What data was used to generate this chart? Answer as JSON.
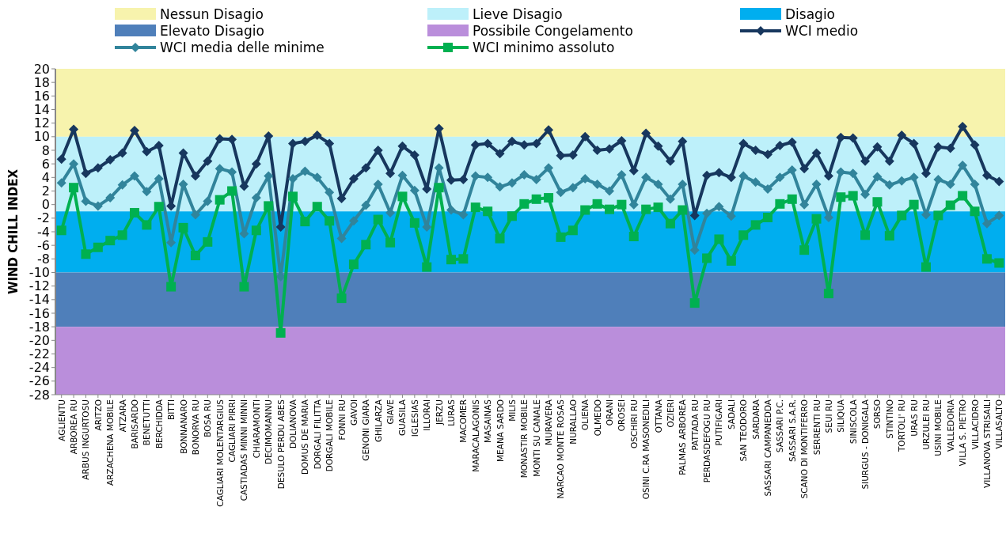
{
  "chart_data": {
    "type": "line",
    "ylabel": "WIND CHILL INDEX",
    "ylim": [
      -28,
      20
    ],
    "yticks": [
      -28,
      -26,
      -24,
      -22,
      -20,
      -18,
      -16,
      -14,
      -12,
      -10,
      -8,
      -6,
      -4,
      -2,
      0,
      2,
      4,
      6,
      8,
      10,
      12,
      14,
      16,
      18,
      20
    ],
    "legend": "top",
    "line_style": "solid",
    "categories": [
      "AGLIENTU",
      "ARBOREA RU",
      "ARBUS INGURTOSU",
      "ARITZO",
      "ARZACHENA MOBILE",
      "ATZARA",
      "BARISARDO",
      "BENETUTTI",
      "BERCHIDDA",
      "BITTI",
      "BONNANARO",
      "BONORVA RU",
      "BOSA RU",
      "CAGLIARI MOLENTARGIUS",
      "CAGLIARI PIRRI",
      "CASTIADAS MINNI MINNI",
      "CHIARAMONTI",
      "DECIMOMANNU",
      "DESULO PERDU ABES",
      "DOLIANOVA",
      "DOMUS DE MARIA",
      "DORGALI FILITTA",
      "DORGALI MOBILE",
      "FONNI RU",
      "GAVOI",
      "GENONI GIARA",
      "GHILARZA",
      "GIAVE",
      "GUASILA",
      "IGLESIAS",
      "ILLORAI",
      "JERZU",
      "LURAS",
      "MACOMER",
      "MARACALAGONIS",
      "MASAINAS",
      "MEANA SARDO",
      "MILIS",
      "MONASTIR MOBILE",
      "MONTI SU CANALE",
      "MURAVERA",
      "NARCAO MONTE ROSAS",
      "NURALLAO",
      "OLIENA",
      "OLMEDO",
      "ORANI",
      "OROSEI",
      "OSCHIRI RU",
      "OSINI C.RA MASONEDILI",
      "OTTANA",
      "OZIERI",
      "PALMAS ARBOREA",
      "PATTADA RU",
      "PERDASDEFOGU RU",
      "PUTIFIGARI",
      "SADALI",
      "SAN TEODORO",
      "SARDARA",
      "SASSARI CAMPANEDDA",
      "SASSARI P.C.",
      "SASSARI S.A.R.",
      "SCANO DI MONTIFERRO",
      "SERRENTI RU",
      "SEUI RU",
      "SILIQUA",
      "SINISCOLA",
      "SIURGUS - DONIGALA",
      "SORSO",
      "STINTINO",
      "TORTOLI' RU",
      "URAS RU",
      "URZULEI RU",
      "USINI MOBILE",
      "VALLEDORIA",
      "VILLA S. PIETRO",
      "VILLACIDRO",
      "VILLANOVA STRISAILI",
      "VILLASALTO"
    ],
    "bands": [
      {
        "axis": "y",
        "from": 10,
        "to": 20,
        "label": "Nessun Disagio",
        "color": "#f7f3ad"
      },
      {
        "axis": "y",
        "from": -1,
        "to": 10,
        "label": "Lieve Disagio",
        "color": "#bdf0fa"
      },
      {
        "axis": "y",
        "from": -10,
        "to": -1,
        "label": "Disagio",
        "color": "#00aeef"
      },
      {
        "axis": "y",
        "from": -18,
        "to": -10,
        "label": "Elevato Disagio",
        "color": "#4f7fba"
      },
      {
        "axis": "y",
        "from": -28,
        "to": -18,
        "label": "Possibile Congelamento",
        "color": "#ba8edb"
      }
    ],
    "series": [
      {
        "name": "WCI medio",
        "color": "#17375e",
        "marker": "diamond",
        "values": [
          6.7,
          11.1,
          4.6,
          5.4,
          6.6,
          7.6,
          10.9,
          7.8,
          8.7,
          -0.2,
          7.6,
          4.2,
          6.4,
          9.7,
          9.6,
          2.7,
          6.0,
          10.1,
          -3.3,
          9.0,
          9.3,
          10.2,
          9.0,
          0.9,
          3.8,
          5.4,
          8.0,
          4.6,
          8.6,
          7.3,
          2.3,
          11.2,
          3.6,
          3.7,
          8.8,
          9.0,
          7.5,
          9.3,
          8.8,
          9.0,
          11.0,
          7.2,
          7.3,
          10.0,
          8.0,
          8.2,
          9.4,
          5.0,
          10.5,
          8.6,
          6.4,
          9.3,
          -1.6,
          4.3,
          4.7,
          4.0,
          9.0,
          8.0,
          7.4,
          8.7,
          9.2,
          5.3,
          7.6,
          4.2,
          9.9,
          9.8,
          6.4,
          8.5,
          6.4,
          10.2,
          9.0,
          4.6,
          8.5,
          8.3,
          11.5,
          8.8,
          4.3,
          3.4
        ]
      },
      {
        "name": "WCI media delle minime",
        "color": "#31849b",
        "marker": "diamond",
        "values": [
          3.2,
          6.0,
          0.5,
          -0.2,
          1.0,
          2.9,
          4.2,
          1.9,
          3.8,
          -5.6,
          3.0,
          -1.5,
          0.5,
          5.3,
          4.8,
          -4.3,
          1.0,
          4.2,
          -10.6,
          3.8,
          4.9,
          4.0,
          1.8,
          -5.0,
          -2.4,
          -0.1,
          3.0,
          -1.2,
          4.3,
          2.1,
          -3.3,
          5.4,
          -0.8,
          -1.5,
          4.2,
          4.0,
          2.6,
          3.2,
          4.4,
          3.7,
          5.4,
          1.8,
          2.5,
          3.8,
          3.0,
          2.0,
          4.4,
          0.0,
          4.0,
          3.0,
          0.8,
          3.0,
          -6.7,
          -1.3,
          -0.3,
          -1.7,
          4.2,
          3.3,
          2.3,
          4.0,
          5.1,
          0.0,
          3.0,
          -1.9,
          4.8,
          4.6,
          1.5,
          4.1,
          2.9,
          3.5,
          4.0,
          -1.5,
          3.7,
          3.0,
          5.8,
          3.0,
          -2.8,
          -1.6
        ]
      },
      {
        "name": "WCI minimo assoluto",
        "color": "#00b050",
        "marker": "square",
        "values": [
          -3.8,
          2.5,
          -7.3,
          -6.3,
          -5.3,
          -4.5,
          -1.2,
          -3.0,
          -0.3,
          -12.1,
          -3.4,
          -7.5,
          -5.5,
          0.7,
          2.0,
          -12.1,
          -3.8,
          -0.2,
          -18.9,
          1.2,
          -2.5,
          -0.3,
          -2.4,
          -13.8,
          -8.8,
          -5.9,
          -2.2,
          -5.6,
          1.2,
          -2.7,
          -9.2,
          2.5,
          -8.1,
          -8.0,
          -0.4,
          -1.0,
          -5.0,
          -1.7,
          0.1,
          0.8,
          1.0,
          -4.8,
          -3.8,
          -0.8,
          0.1,
          -0.7,
          0.0,
          -4.7,
          -0.7,
          -0.4,
          -2.8,
          -0.8,
          -14.5,
          -7.9,
          -5.1,
          -8.3,
          -4.5,
          -3.0,
          -1.9,
          0.1,
          0.8,
          -6.7,
          -2.1,
          -13.1,
          1.1,
          1.3,
          -4.5,
          0.4,
          -4.6,
          -1.6,
          0.0,
          -9.2,
          -1.6,
          -0.1,
          1.3,
          -1.0,
          -8.0,
          -8.6
        ]
      }
    ]
  }
}
